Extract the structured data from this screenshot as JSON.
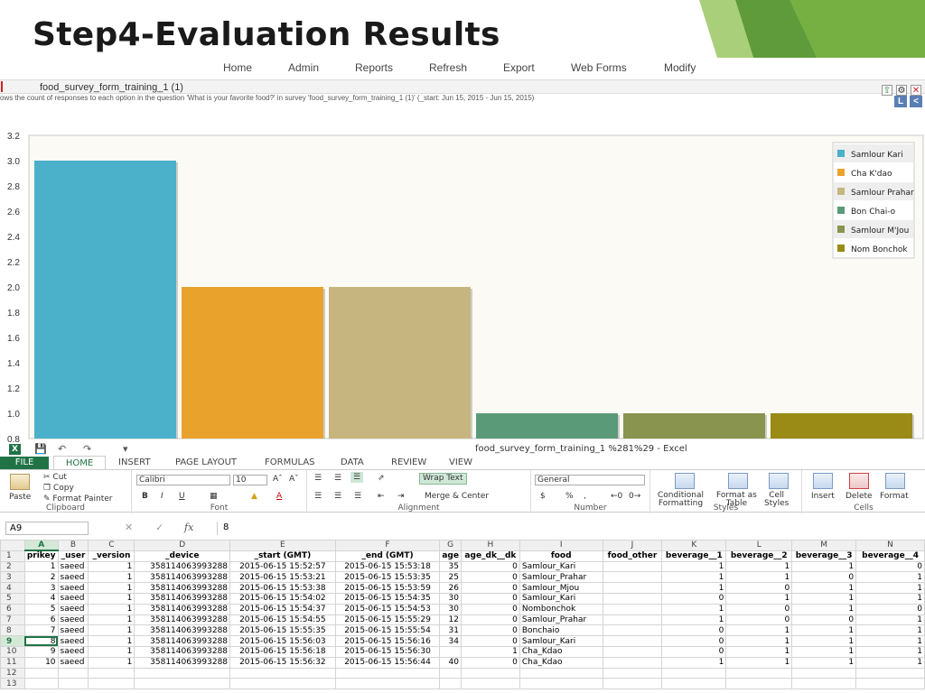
{
  "slide": {
    "title": "Step4-Evaluation Results"
  },
  "nav": [
    "Home",
    "Admin",
    "Reports",
    "Refresh",
    "Export",
    "Web Forms",
    "Modify"
  ],
  "report": {
    "title": "food_survey_form_training_1 (1)",
    "description": "ows the count of responses to each option in the question 'What is your favorite food?' in survey 'food_survey_form_training_1 (1)' (_start: Jun 15, 2015 - Jun 15, 2015)",
    "btn_l": "L",
    "btn_lt": "<"
  },
  "chart_data": {
    "type": "bar",
    "categories": [
      "Samlour Kari",
      "Cha K'dao",
      "Samlour Prahar",
      "Bon Chai-o",
      "Samlour M'Jou",
      "Nom Bonchok"
    ],
    "values": [
      3,
      2,
      2,
      1,
      1,
      1
    ],
    "colors": [
      "#4bb0c9",
      "#e9a32c",
      "#c7b57f",
      "#5a9a78",
      "#89944e",
      "#9a8a16"
    ],
    "ylim": [
      0.8,
      3.2
    ],
    "yticks": [
      "0.8",
      "1.0",
      "1.2",
      "1.4",
      "1.6",
      "1.8",
      "2.0",
      "2.2",
      "2.4",
      "2.6",
      "2.8",
      "3.0",
      "3.2"
    ],
    "legend_position": "top-right",
    "grid": false
  },
  "excel": {
    "title": "food_survey_form_training_1 %281%29 - Excel",
    "tabs": [
      "FILE",
      "HOME",
      "INSERT",
      "PAGE LAYOUT",
      "FORMULAS",
      "DATA",
      "REVIEW",
      "VIEW"
    ],
    "ribbon": {
      "cut": "Cut",
      "copy": "Copy",
      "format_painter": "Format Painter",
      "paste": "Paste",
      "font_name": "Calibri",
      "font_size": "10",
      "wrap_text": "Wrap Text",
      "merge_center": "Merge & Center",
      "number_format": "General",
      "conditional": "Conditional",
      "formatting": "Formatting",
      "format_as": "Format as",
      "table": "Table",
      "cell": "Cell",
      "styles_btn": "Styles",
      "insert": "Insert",
      "delete": "Delete",
      "format": "Format",
      "groups": [
        "Clipboard",
        "Font",
        "Alignment",
        "Number",
        "Styles",
        "Cells"
      ]
    },
    "name_box": "A9",
    "formula": "8",
    "fx": "fx",
    "columns": [
      "A",
      "B",
      "C",
      "D",
      "E",
      "F",
      "G",
      "H",
      "I",
      "J",
      "K",
      "L",
      "M",
      "N"
    ],
    "headers": [
      "prikey",
      "_user",
      "_version",
      "_device",
      "_start (GMT)",
      "_end (GMT)",
      "age",
      "age_dk__dk",
      "food",
      "food_other",
      "beverage__1",
      "beverage__2",
      "beverage__3",
      "beverage__4"
    ],
    "rows": [
      [
        "1",
        "saeed",
        "1",
        "358114063993288",
        "2015-06-15 15:52:57",
        "2015-06-15 15:53:18",
        "35",
        "0",
        "Samlour_Kari",
        "",
        "1",
        "1",
        "1",
        "0"
      ],
      [
        "2",
        "saeed",
        "1",
        "358114063993288",
        "2015-06-15 15:53:21",
        "2015-06-15 15:53:35",
        "25",
        "0",
        "Samlour_Prahar",
        "",
        "1",
        "1",
        "0",
        "1"
      ],
      [
        "3",
        "saeed",
        "1",
        "358114063993288",
        "2015-06-15 15:53:38",
        "2015-06-15 15:53:59",
        "26",
        "0",
        "Samlour_Mjou",
        "",
        "1",
        "0",
        "1",
        "1"
      ],
      [
        "4",
        "saeed",
        "1",
        "358114063993288",
        "2015-06-15 15:54:02",
        "2015-06-15 15:54:35",
        "30",
        "0",
        "Samlour_Kari",
        "",
        "0",
        "1",
        "1",
        "1"
      ],
      [
        "5",
        "saeed",
        "1",
        "358114063993288",
        "2015-06-15 15:54:37",
        "2015-06-15 15:54:53",
        "30",
        "0",
        "Nombonchok",
        "",
        "1",
        "0",
        "1",
        "0"
      ],
      [
        "6",
        "saeed",
        "1",
        "358114063993288",
        "2015-06-15 15:54:55",
        "2015-06-15 15:55:29",
        "12",
        "0",
        "Samlour_Prahar",
        "",
        "1",
        "0",
        "0",
        "1"
      ],
      [
        "7",
        "saeed",
        "1",
        "358114063993288",
        "2015-06-15 15:55:35",
        "2015-06-15 15:55:54",
        "31",
        "0",
        "Bonchaio",
        "",
        "0",
        "1",
        "1",
        "1"
      ],
      [
        "8",
        "saeed",
        "1",
        "358114063993288",
        "2015-06-15 15:56:03",
        "2015-06-15 15:56:16",
        "34",
        "0",
        "Samlour_Kari",
        "",
        "0",
        "1",
        "1",
        "1"
      ],
      [
        "9",
        "saeed",
        "1",
        "358114063993288",
        "2015-06-15 15:56:18",
        "2015-06-15 15:56:30",
        "",
        "1",
        "Cha_Kdao",
        "",
        "0",
        "1",
        "1",
        "1"
      ],
      [
        "10",
        "saeed",
        "1",
        "358114063993288",
        "2015-06-15 15:56:32",
        "2015-06-15 15:56:44",
        "40",
        "0",
        "Cha_Kdao",
        "",
        "1",
        "1",
        "1",
        "1"
      ]
    ],
    "row_numbers": [
      "1",
      "2",
      "3",
      "4",
      "5",
      "6",
      "7",
      "8",
      "9",
      "10",
      "11",
      "12",
      "13"
    ],
    "selected_row": "9",
    "selected_col": "A"
  }
}
